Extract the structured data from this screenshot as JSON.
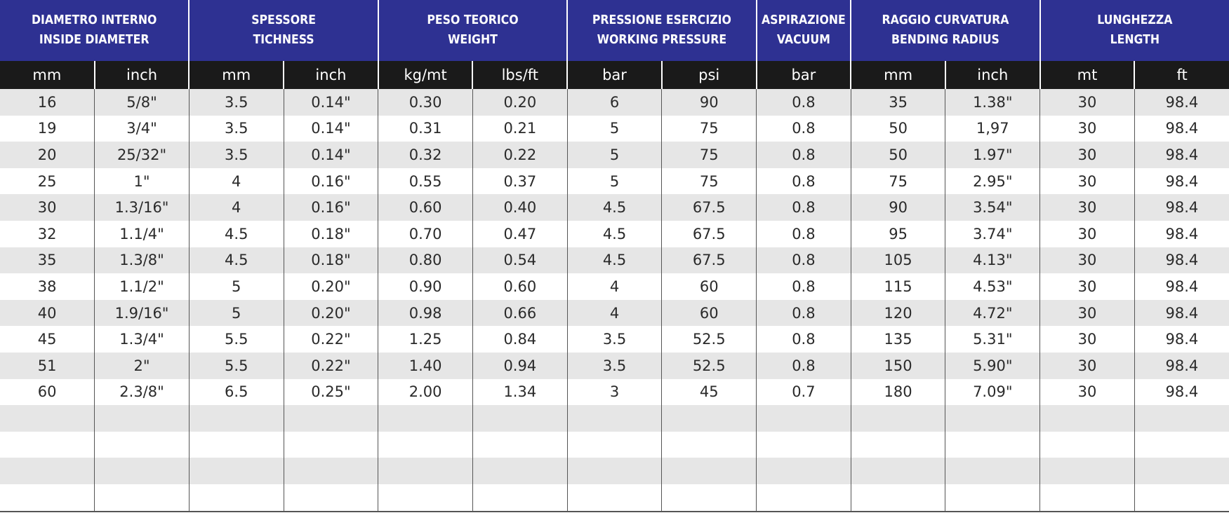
{
  "table": {
    "groups": [
      {
        "line1": "DIAMETRO INTERNO",
        "line2": "INSIDE DIAMETER",
        "span": 2
      },
      {
        "line1": "SPESSORE",
        "line2": "TICHNESS",
        "span": 2
      },
      {
        "line1": "PESO TEORICO",
        "line2": "WEIGHT",
        "span": 2
      },
      {
        "line1": "PRESSIONE ESERCIZIO",
        "line2": "WORKING PRESSURE",
        "span": 2
      },
      {
        "line1": "ASPIRAZIONE",
        "line2": "VACUUM",
        "span": 1
      },
      {
        "line1": "RAGGIO CURVATURA",
        "line2": "BENDING RADIUS",
        "span": 2
      },
      {
        "line1": "LUNGHEZZA",
        "line2": "LENGTH",
        "span": 2
      }
    ],
    "units": [
      "mm",
      "inch",
      "mm",
      "inch",
      "kg/mt",
      "lbs/ft",
      "bar",
      "psi",
      "bar",
      "mm",
      "inch",
      "mt",
      "ft"
    ],
    "rows": [
      [
        "16",
        "5/8\"",
        "3.5",
        "0.14\"",
        "0.30",
        "0.20",
        "6",
        "90",
        "0.8",
        "35",
        "1.38\"",
        "30",
        "98.4"
      ],
      [
        "19",
        "3/4\"",
        "3.5",
        "0.14\"",
        "0.31",
        "0.21",
        "5",
        "75",
        "0.8",
        "50",
        "1,97",
        "30",
        "98.4"
      ],
      [
        "20",
        "25/32\"",
        "3.5",
        "0.14\"",
        "0.32",
        "0.22",
        "5",
        "75",
        "0.8",
        "50",
        "1.97\"",
        "30",
        "98.4"
      ],
      [
        "25",
        "1\"",
        "4",
        "0.16\"",
        "0.55",
        "0.37",
        "5",
        "75",
        "0.8",
        "75",
        "2.95\"",
        "30",
        "98.4"
      ],
      [
        "30",
        "1.3/16\"",
        "4",
        "0.16\"",
        "0.60",
        "0.40",
        "4.5",
        "67.5",
        "0.8",
        "90",
        "3.54\"",
        "30",
        "98.4"
      ],
      [
        "32",
        "1.1/4\"",
        "4.5",
        "0.18\"",
        "0.70",
        "0.47",
        "4.5",
        "67.5",
        "0.8",
        "95",
        "3.74\"",
        "30",
        "98.4"
      ],
      [
        "35",
        "1.3/8\"",
        "4.5",
        "0.18\"",
        "0.80",
        "0.54",
        "4.5",
        "67.5",
        "0.8",
        "105",
        "4.13\"",
        "30",
        "98.4"
      ],
      [
        "38",
        "1.1/2\"",
        "5",
        "0.20\"",
        "0.90",
        "0.60",
        "4",
        "60",
        "0.8",
        "115",
        "4.53\"",
        "30",
        "98.4"
      ],
      [
        "40",
        "1.9/16\"",
        "5",
        "0.20\"",
        "0.98",
        "0.66",
        "4",
        "60",
        "0.8",
        "120",
        "4.72\"",
        "30",
        "98.4"
      ],
      [
        "45",
        "1.3/4\"",
        "5.5",
        "0.22\"",
        "1.25",
        "0.84",
        "3.5",
        "52.5",
        "0.8",
        "135",
        "5.31\"",
        "30",
        "98.4"
      ],
      [
        "51",
        "2\"",
        "5.5",
        "0.22\"",
        "1.40",
        "0.94",
        "3.5",
        "52.5",
        "0.8",
        "150",
        "5.90\"",
        "30",
        "98.4"
      ],
      [
        "60",
        "2.3/8\"",
        "6.5",
        "0.25\"",
        "2.00",
        "1.34",
        "3",
        "45",
        "0.7",
        "180",
        "7.09\"",
        "30",
        "98.4"
      ],
      [
        "",
        "",
        "",
        "",
        "",
        "",
        "",
        "",
        "",
        "",
        "",
        "",
        ""
      ],
      [
        "",
        "",
        "",
        "",
        "",
        "",
        "",
        "",
        "",
        "",
        "",
        "",
        ""
      ],
      [
        "",
        "",
        "",
        "",
        "",
        "",
        "",
        "",
        "",
        "",
        "",
        "",
        ""
      ],
      [
        "",
        "",
        "",
        "",
        "",
        "",
        "",
        "",
        "",
        "",
        "",
        "",
        ""
      ]
    ],
    "colors": {
      "header_bg": "#2e3192",
      "units_bg": "#1a1a1a",
      "stripe_bg": "#e6e6e6"
    }
  }
}
